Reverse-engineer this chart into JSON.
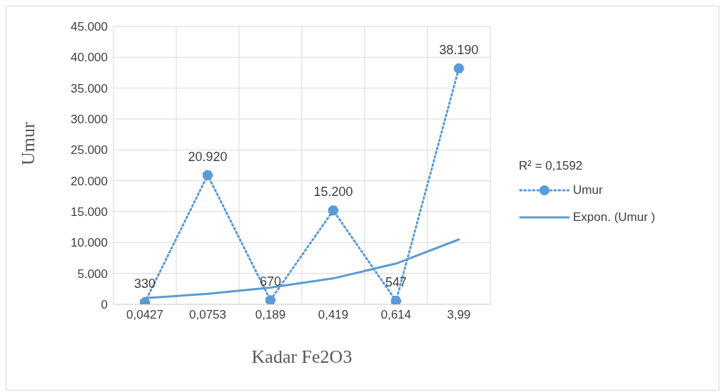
{
  "chart_data": {
    "type": "line",
    "xlabel": "Kadar Fe2O3",
    "ylabel": "Umur",
    "categories": [
      "0,0427",
      "0,0753",
      "0,189",
      "0,419",
      "0,614",
      "3,99"
    ],
    "series": [
      {
        "name": "Umur",
        "color": "#5b9bd5",
        "values": [
          330,
          20920,
          670,
          15200,
          547,
          38190
        ],
        "value_labels": [
          "330",
          "20.920",
          "670",
          "15.200",
          "547",
          "38.190"
        ],
        "marker": "circle",
        "line_style": "dotted"
      },
      {
        "name": "Expon. (Umur )",
        "color": "#5b9bd5",
        "values": [
          1000,
          1700,
          2700,
          4200,
          6600,
          10500
        ],
        "marker": "none",
        "line_style": "solid"
      }
    ],
    "ylim": [
      0,
      45000
    ],
    "yticks": [
      0,
      {
        "value": 5000,
        "label": "5.000"
      },
      {
        "value": 10000,
        "label": "10.000"
      },
      {
        "value": 15000,
        "label": "15.000"
      },
      {
        "value": 20000,
        "label": "20.000"
      },
      {
        "value": 25000,
        "label": "25.000"
      },
      {
        "value": 30000,
        "label": "30.000"
      },
      {
        "value": 35000,
        "label": "35.000"
      },
      {
        "value": 40000,
        "label": "40.000"
      },
      {
        "value": 45000,
        "label": "45.000"
      }
    ],
    "annotations": [
      "R² = 0,1592"
    ],
    "grid": true,
    "legend": "right"
  }
}
